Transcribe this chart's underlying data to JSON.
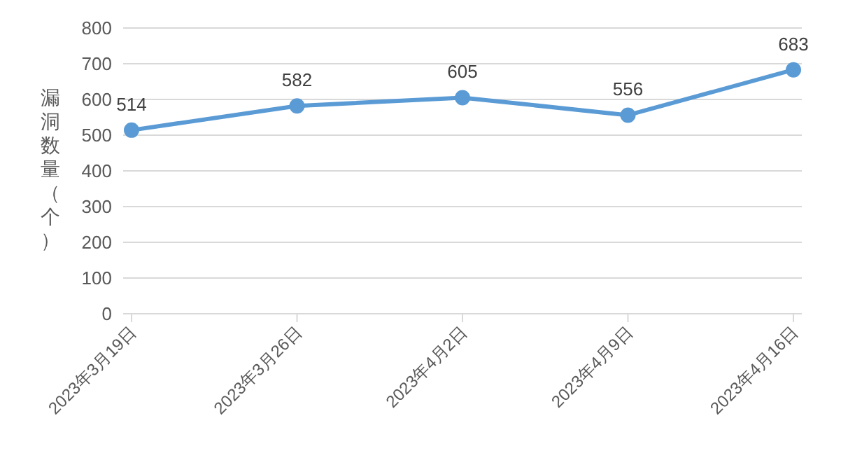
{
  "chart_data": {
    "type": "line",
    "ylabel": "漏洞数量（个）",
    "categories": [
      "2023年3月19日",
      "2023年3月26日",
      "2023年4月2日",
      "2023年4月9日",
      "2023年4月16日"
    ],
    "series": [
      {
        "color": "#5b9bd5",
        "values": [
          514,
          582,
          605,
          556,
          683
        ]
      }
    ],
    "ylim": [
      0,
      800
    ],
    "yticks": [
      0,
      100,
      200,
      300,
      400,
      500,
      600,
      700,
      800
    ],
    "grid": "y",
    "marker": "circle",
    "line_style": "solid",
    "data_labels": true
  }
}
